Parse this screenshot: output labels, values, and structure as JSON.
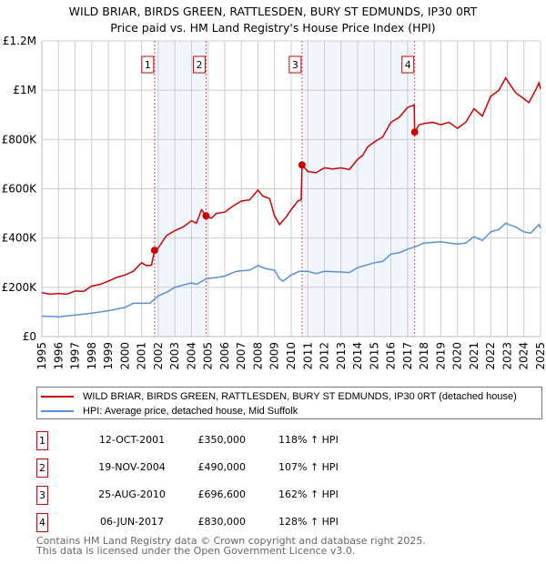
{
  "chart_data": {
    "type": "line",
    "title": "WILD BRIAR, BIRDS GREEN, RATTLESDEN, BURY ST EDMUNDS, IP30 0RT",
    "subtitle": "Price paid vs. HM Land Registry's House Price Index (HPI)",
    "xlim": [
      1995,
      2025
    ],
    "ylim": [
      0,
      1200000
    ],
    "grid": true,
    "y_ticks": [
      {
        "v": 0,
        "label": "£0"
      },
      {
        "v": 200000,
        "label": "£200K"
      },
      {
        "v": 400000,
        "label": "£400K"
      },
      {
        "v": 600000,
        "label": "£600K"
      },
      {
        "v": 800000,
        "label": "£800K"
      },
      {
        "v": 1000000,
        "label": "£1M"
      },
      {
        "v": 1200000,
        "label": "£1.2M"
      }
    ],
    "x_ticks": [
      "1995",
      "1996",
      "1997",
      "1998",
      "1999",
      "2000",
      "2001",
      "2002",
      "2003",
      "2004",
      "2005",
      "2006",
      "2007",
      "2008",
      "2009",
      "2010",
      "2011",
      "2012",
      "2013",
      "2014",
      "2015",
      "2016",
      "2017",
      "2018",
      "2019",
      "2020",
      "2021",
      "2022",
      "2023",
      "2024",
      "2025"
    ],
    "series": [
      {
        "name": "WILD BRIAR, BIRDS GREEN, RATTLESDEN, BURY ST EDMUNDS, IP30 0RT (detached house)",
        "color": "#cc0000",
        "x": [
          1995,
          1995.5,
          1996,
          1996.5,
          1997,
          1997.5,
          1998,
          1998.5,
          1999,
          1999.5,
          2000,
          2000.5,
          2001,
          2001.3,
          2001.6,
          2001.78,
          2002,
          2002.5,
          2003,
          2003.5,
          2004,
          2004.3,
          2004.6,
          2004.88,
          2005.2,
          2005.5,
          2006,
          2006.5,
          2007,
          2007.5,
          2008,
          2008.3,
          2008.7,
          2009,
          2009.3,
          2009.7,
          2010,
          2010.4,
          2010.6,
          2010.65,
          2011,
          2011.5,
          2012,
          2012.5,
          2013,
          2013.5,
          2014,
          2014.3,
          2014.6,
          2015,
          2015.5,
          2016,
          2016.5,
          2017,
          2017.4,
          2017.43,
          2017.7,
          2018,
          2018.5,
          2019,
          2019.5,
          2020,
          2020.5,
          2021,
          2021.5,
          2022,
          2022.5,
          2022.9,
          2023.2,
          2023.5,
          2024,
          2024.3,
          2024.7,
          2024.9,
          2025
        ],
        "y": [
          178000,
          172000,
          175000,
          172000,
          185000,
          183000,
          205000,
          212000,
          225000,
          240000,
          250000,
          265000,
          300000,
          288000,
          290000,
          350000,
          360000,
          410000,
          430000,
          445000,
          470000,
          460000,
          515000,
          490000,
          480000,
          500000,
          505000,
          530000,
          550000,
          555000,
          595000,
          570000,
          560000,
          490000,
          455000,
          485000,
          515000,
          550000,
          555000,
          696600,
          670000,
          665000,
          685000,
          680000,
          685000,
          678000,
          720000,
          735000,
          770000,
          790000,
          810000,
          870000,
          890000,
          930000,
          940000,
          830000,
          860000,
          865000,
          870000,
          860000,
          870000,
          845000,
          870000,
          925000,
          895000,
          975000,
          1000000,
          1050000,
          1020000,
          990000,
          965000,
          950000,
          1000000,
          1030000,
          1005000
        ]
      },
      {
        "name": "HPI: Average price, detached house, Mid Suffolk",
        "color": "#5b8fd4",
        "x": [
          1995,
          1996,
          1997,
          1998,
          1999,
          2000,
          2000.5,
          2001.5,
          2002,
          2002.5,
          2003,
          2004,
          2004.3,
          2004.9,
          2005.5,
          2006,
          2006.7,
          2007.5,
          2008,
          2008.5,
          2009,
          2009.3,
          2009.5,
          2010,
          2010.5,
          2011,
          2011.5,
          2012,
          2013,
          2013.5,
          2014,
          2015,
          2015.5,
          2016,
          2016.5,
          2017,
          2017.5,
          2018,
          2019,
          2020,
          2020.5,
          2021,
          2021.5,
          2022,
          2022.5,
          2022.9,
          2023.5,
          2024,
          2024.4,
          2024.9,
          2025
        ],
        "y": [
          83000,
          80000,
          87000,
          95000,
          105000,
          118000,
          135000,
          135000,
          165000,
          180000,
          200000,
          218000,
          212000,
          235000,
          240000,
          245000,
          265000,
          270000,
          288000,
          275000,
          270000,
          235000,
          225000,
          250000,
          265000,
          265000,
          255000,
          265000,
          262000,
          260000,
          280000,
          300000,
          305000,
          335000,
          340000,
          355000,
          365000,
          380000,
          385000,
          375000,
          380000,
          405000,
          390000,
          425000,
          435000,
          460000,
          445000,
          425000,
          420000,
          455000,
          440000
        ]
      }
    ],
    "sales": [
      {
        "id": "1",
        "date": "12-OCT-2001",
        "x": 2001.78,
        "price": "£350,000",
        "value": 350000,
        "hpi": "118% ↑ HPI"
      },
      {
        "id": "2",
        "date": "19-NOV-2004",
        "x": 2004.88,
        "price": "£490,000",
        "value": 490000,
        "hpi": "107% ↑ HPI"
      },
      {
        "id": "3",
        "date": "25-AUG-2010",
        "x": 2010.65,
        "price": "£696,600",
        "value": 696600,
        "hpi": "162% ↑ HPI"
      },
      {
        "id": "4",
        "date": "06-JUN-2017",
        "x": 2017.43,
        "price": "£830,000",
        "value": 830000,
        "hpi": "128% ↑ HPI"
      }
    ],
    "shaded_ranges": [
      [
        2001.78,
        2004.88
      ],
      [
        2010.65,
        2017.43
      ]
    ]
  },
  "footer": {
    "line1": "Contains HM Land Registry data © Crown copyright and database right 2025.",
    "line2": "This data is licensed under the Open Government Licence v3.0."
  }
}
